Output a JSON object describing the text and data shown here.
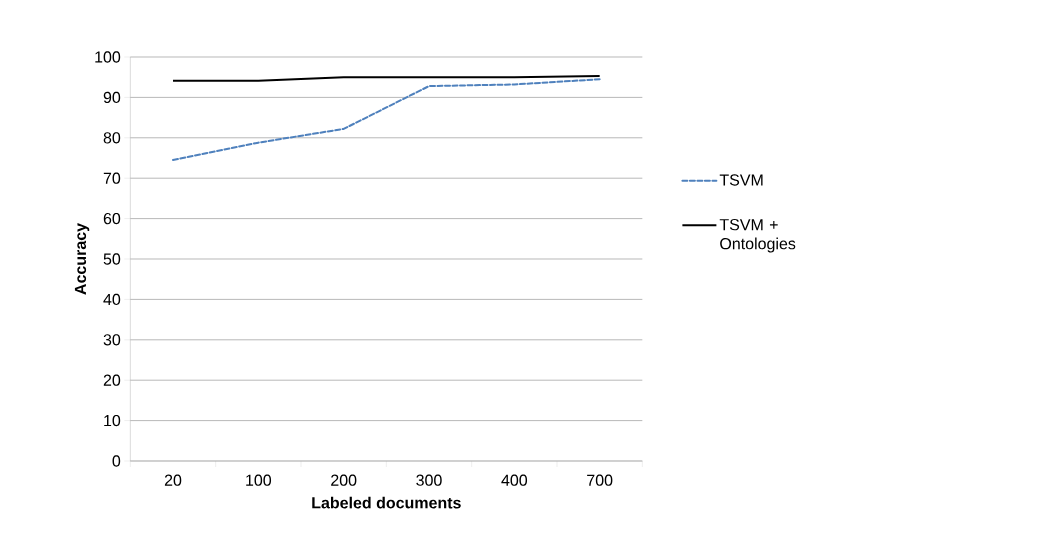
{
  "chart_data": {
    "type": "line",
    "xlabel": "Labeled documents",
    "ylabel": "Accuracy",
    "categories": [
      "20",
      "100",
      "200",
      "300",
      "400",
      "700"
    ],
    "series": [
      {
        "name": "TSVM",
        "color": "#4f81bd",
        "line_style": "dashed",
        "values": [
          74.5,
          78.8,
          82.2,
          92.8,
          93.2,
          94.5
        ]
      },
      {
        "name": "TSVM + Ontologies",
        "color": "#000000",
        "line_style": "solid",
        "values": [
          94.1,
          94.1,
          95.0,
          95.0,
          95.0,
          95.3
        ]
      }
    ],
    "ylim": [
      0,
      100
    ],
    "yticks": [
      0,
      10,
      20,
      30,
      40,
      50,
      60,
      70,
      80,
      90,
      100
    ],
    "grid": "y",
    "legend": "right",
    "marker": "none"
  }
}
